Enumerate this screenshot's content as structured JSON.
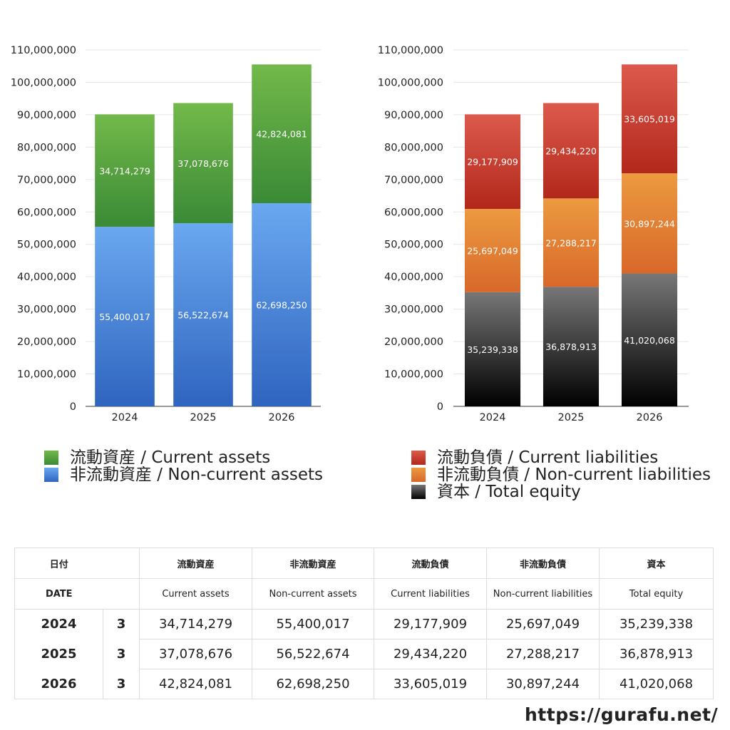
{
  "chart_data": [
    {
      "type": "bar",
      "stacked": true,
      "categories": [
        "2024",
        "2025",
        "2026"
      ],
      "series": [
        {
          "name": "非流動資産 / Non-current assets",
          "values": [
            55400017,
            56522674,
            62698250
          ],
          "color_top": "#6aa8f0",
          "color_bottom": "#2f64bf"
        },
        {
          "name": "流動資産 / Current assets",
          "values": [
            34714279,
            37078676,
            42824081
          ],
          "color_top": "#73b94a",
          "color_bottom": "#3a8a36"
        }
      ],
      "ylim": [
        0,
        110000000
      ],
      "yticks": [
        "0",
        "10,000,000",
        "20,000,000",
        "30,000,000",
        "40,000,000",
        "50,000,000",
        "60,000,000",
        "70,000,000",
        "80,000,000",
        "90,000,000",
        "100,000,000",
        "110,000,000"
      ],
      "grid": true,
      "title": "",
      "xlabel": "",
      "ylabel": ""
    },
    {
      "type": "bar",
      "stacked": true,
      "categories": [
        "2024",
        "2025",
        "2026"
      ],
      "series": [
        {
          "name": "資本 / Total equity",
          "values": [
            35239338,
            36878913,
            41020068
          ],
          "color_top": "#777777",
          "color_bottom": "#000000"
        },
        {
          "name": "非流動負債 / Non-current liabilities",
          "values": [
            25697049,
            27288217,
            30897244
          ],
          "color_top": "#ec9a40",
          "color_bottom": "#d8682a"
        },
        {
          "name": "流動負債 / Current liabilities",
          "values": [
            29177909,
            29434220,
            33605019
          ],
          "color_top": "#dc5a4c",
          "color_bottom": "#b2281b"
        }
      ],
      "ylim": [
        0,
        110000000
      ],
      "yticks": [
        "0",
        "10,000,000",
        "20,000,000",
        "30,000,000",
        "40,000,000",
        "50,000,000",
        "60,000,000",
        "70,000,000",
        "80,000,000",
        "90,000,000",
        "100,000,000",
        "110,000,000"
      ],
      "grid": true,
      "title": "",
      "xlabel": "",
      "ylabel": ""
    }
  ],
  "legend_left": [
    {
      "label": "流動資産 / Current assets"
    },
    {
      "label": "非流動資産 / Non-current assets"
    }
  ],
  "legend_right": [
    {
      "label": "流動負債 / Current liabilities"
    },
    {
      "label": "非流動負債 / Non-current liabilities"
    },
    {
      "label": "資本 / Total equity"
    }
  ],
  "table": {
    "headers_jp": [
      "日付",
      "流動資産",
      "非流動資産",
      "流動負債",
      "非流動負債",
      "資本"
    ],
    "headers_en": [
      "DATE",
      "Current assets",
      "Non-current assets",
      "Current liabilities",
      "Non-current liabilities",
      "Total equity"
    ],
    "rows": [
      {
        "year": "2024",
        "count": "3",
        "values": [
          "34,714,279",
          "55,400,017",
          "29,177,909",
          "25,697,049",
          "35,239,338"
        ]
      },
      {
        "year": "2025",
        "count": "3",
        "values": [
          "37,078,676",
          "56,522,674",
          "29,434,220",
          "27,288,217",
          "36,878,913"
        ]
      },
      {
        "year": "2026",
        "count": "3",
        "values": [
          "42,824,081",
          "62,698,250",
          "33,605,019",
          "30,897,244",
          "41,020,068"
        ]
      }
    ]
  },
  "footer": {
    "url": "https://gurafu.net/"
  }
}
